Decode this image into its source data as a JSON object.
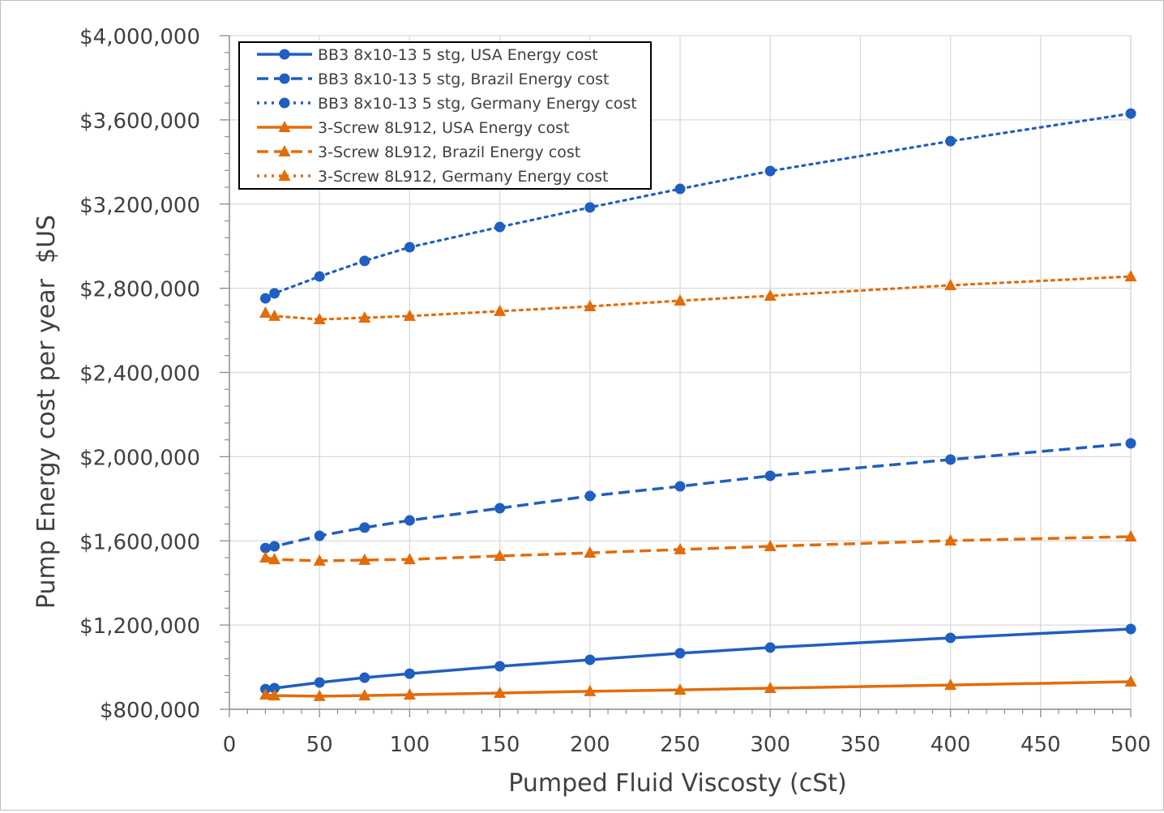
{
  "chart_data": {
    "type": "line",
    "title": "",
    "xlabel": "Pumped Fluid Viscosty (cSt)",
    "ylabel": "Pump Energy cost per year  $US",
    "xlim": [
      0,
      500
    ],
    "ylim": [
      800000,
      4000000
    ],
    "x_ticks": [
      "0",
      "50",
      "100",
      "150",
      "200",
      "250",
      "300",
      "350",
      "400",
      "450",
      "500"
    ],
    "y_ticks": [
      "$800,000",
      "$1,200,000",
      "$1,600,000",
      "$2,000,000",
      "$2,400,000",
      "$2,800,000",
      "$3,200,000",
      "$3,600,000",
      "$4,000,000"
    ],
    "grid": true,
    "legend_position": "top-left",
    "x": [
      20,
      25,
      50,
      75,
      100,
      150,
      200,
      250,
      300,
      400,
      500
    ],
    "series": [
      {
        "name": "BB3 8x10-13 5 stg, USA Energy cost",
        "color": "#1f5fc0",
        "dash": "solid",
        "marker": "circle",
        "values": [
          896000,
          900000,
          927000,
          950000,
          969000,
          1004000,
          1035000,
          1066000,
          1093000,
          1139000,
          1181000
        ]
      },
      {
        "name": "BB3 8x10-13 5 stg, Brazil Energy cost",
        "color": "#1f5fc0",
        "dash": "dashed",
        "marker": "circle",
        "values": [
          1566000,
          1574000,
          1624000,
          1663000,
          1697000,
          1755000,
          1813000,
          1859000,
          1909000,
          1986000,
          2063000
        ]
      },
      {
        "name": "BB3 8x10-13 5 stg, Germany Energy cost",
        "color": "#1f5fc0",
        "dash": "dotted",
        "marker": "circle",
        "values": [
          2752000,
          2776000,
          2856000,
          2930000,
          2995000,
          3091000,
          3184000,
          3272000,
          3357000,
          3499000,
          3630000
        ]
      },
      {
        "name": "3-Screw 8L912, USA Energy cost",
        "color": "#e36c0a",
        "dash": "solid",
        "marker": "triangle",
        "values": [
          869000,
          865000,
          862000,
          865000,
          869000,
          877000,
          885000,
          892000,
          900000,
          915000,
          931000
        ]
      },
      {
        "name": "3-Screw 8L912, Brazil Energy cost",
        "color": "#e36c0a",
        "dash": "dashed",
        "marker": "triangle",
        "values": [
          1520000,
          1512000,
          1505000,
          1509000,
          1512000,
          1528000,
          1543000,
          1559000,
          1574000,
          1601000,
          1620000
        ]
      },
      {
        "name": "3-Screw 8L912, Germany Energy cost",
        "color": "#e36c0a",
        "dash": "dotted",
        "marker": "triangle",
        "values": [
          2683000,
          2668000,
          2652000,
          2660000,
          2668000,
          2691000,
          2714000,
          2741000,
          2764000,
          2814000,
          2856000
        ]
      }
    ]
  }
}
